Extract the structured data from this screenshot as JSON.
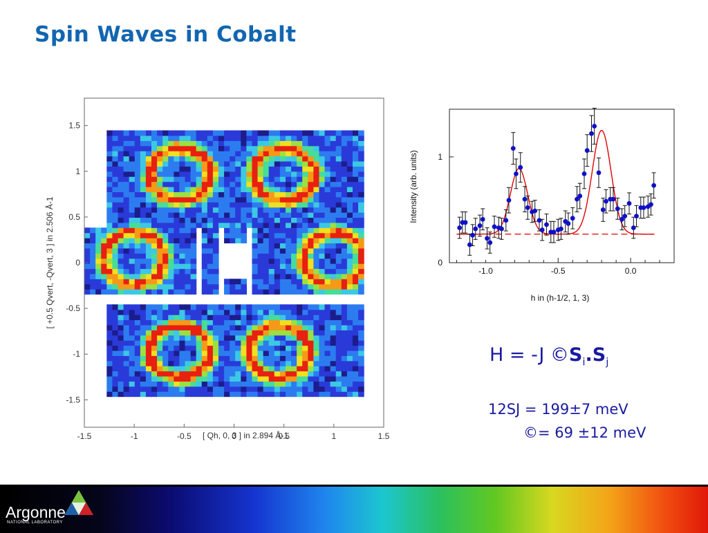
{
  "slide": {
    "title": "Spin Waves in Cobalt",
    "hamiltonian": {
      "prefix": "H = -J ",
      "symbol": "©",
      "s1": "S",
      "sub1": "i",
      "dot": ".",
      "s2": "S",
      "sub2": "j"
    },
    "eq1": "12SJ = 199±7 meV",
    "eq2": "©= 69 ±12 meV"
  },
  "logo": {
    "name": "Argonne",
    "sub": "NATIONAL LABORATORY"
  },
  "colors": {
    "title": "#1266b0",
    "equations": "#1a1aa0",
    "points": "#1010c8",
    "fit": "#e00000"
  },
  "chart_data": [
    {
      "type": "heatmap",
      "xlabel": "[ Qh, 0, 3 ]  in 2.894 Å-1",
      "ylabel": "[ +0.5  Qvert, -Qvert, 3 ]  in 2.506 Å-1",
      "xlim": [
        -1.5,
        1.5
      ],
      "ylim": [
        -1.8,
        1.8
      ],
      "xticks": [
        "-1.5",
        "-1",
        "-0.5",
        "0",
        "0.5",
        "1",
        "1.5"
      ],
      "yticks": [
        "1.5",
        "1",
        "0.5",
        "0",
        "-0.5",
        "-1",
        "-1.5"
      ],
      "colormap": [
        "#1c1c8c",
        "#2a3ad8",
        "#2c7cf0",
        "#3cc8e4",
        "#46dc9a",
        "#9ce040",
        "#f0e020",
        "#f49a18",
        "#e82010"
      ]
    },
    {
      "type": "scatter",
      "xlabel": "h in (h-1/2, 1, 3)",
      "ylabel": "Intensity (arb. units)",
      "xlim": [
        -1.25,
        0.3
      ],
      "ylim": [
        0,
        1.45
      ],
      "xticks": [
        "-1.0",
        "-0.5",
        "0.0"
      ],
      "yticks": [
        "0",
        "1"
      ],
      "x": [
        -1.18,
        -1.16,
        -1.14,
        -1.11,
        -1.09,
        -1.07,
        -1.04,
        -1.02,
        -0.99,
        -0.97,
        -0.94,
        -0.91,
        -0.89,
        -0.86,
        -0.84,
        -0.81,
        -0.79,
        -0.76,
        -0.73,
        -0.71,
        -0.68,
        -0.66,
        -0.63,
        -0.61,
        -0.58,
        -0.55,
        -0.53,
        -0.5,
        -0.48,
        -0.45,
        -0.43,
        -0.4,
        -0.37,
        -0.35,
        -0.32,
        -0.3,
        -0.27,
        -0.25,
        -0.22,
        -0.19,
        -0.17,
        -0.14,
        -0.12,
        -0.09,
        -0.06,
        -0.04,
        -0.01,
        0.02,
        0.04,
        0.07,
        0.09,
        0.12,
        0.14,
        0.16
      ],
      "y": [
        0.33,
        0.38,
        0.38,
        0.17,
        0.26,
        0.32,
        0.35,
        0.41,
        0.23,
        0.19,
        0.34,
        0.33,
        0.32,
        0.4,
        0.59,
        1.08,
        0.84,
        0.9,
        0.6,
        0.52,
        0.48,
        0.49,
        0.4,
        0.31,
        0.36,
        0.29,
        0.29,
        0.31,
        0.32,
        0.39,
        0.37,
        0.42,
        0.6,
        0.63,
        0.84,
        1.06,
        1.22,
        1.29,
        0.85,
        0.5,
        0.58,
        0.6,
        0.6,
        0.51,
        0.41,
        0.44,
        0.56,
        0.33,
        0.44,
        0.52,
        0.52,
        0.53,
        0.55,
        0.73
      ],
      "err": [
        0.1,
        0.1,
        0.1,
        0.1,
        0.1,
        0.1,
        0.1,
        0.1,
        0.1,
        0.1,
        0.1,
        0.1,
        0.1,
        0.1,
        0.12,
        0.15,
        0.14,
        0.14,
        0.12,
        0.11,
        0.1,
        0.1,
        0.1,
        0.1,
        0.1,
        0.1,
        0.1,
        0.1,
        0.1,
        0.1,
        0.1,
        0.1,
        0.12,
        0.12,
        0.14,
        0.15,
        0.17,
        0.17,
        0.14,
        0.11,
        0.11,
        0.11,
        0.11,
        0.1,
        0.1,
        0.1,
        0.1,
        0.1,
        0.1,
        0.1,
        0.1,
        0.1,
        0.1,
        0.12
      ],
      "fit": {
        "baseline": 0.27,
        "peaks": [
          {
            "center": -0.77,
            "height": 0.62,
            "width": 0.06
          },
          {
            "center": -0.2,
            "height": 0.98,
            "width": 0.065
          }
        ]
      }
    }
  ]
}
